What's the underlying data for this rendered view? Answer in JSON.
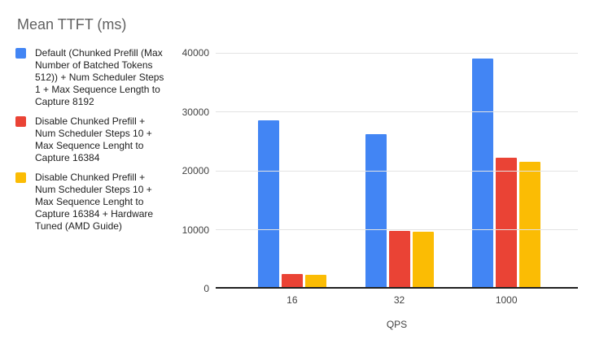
{
  "chart_data": {
    "type": "bar",
    "title": "Mean TTFT (ms)",
    "xlabel": "QPS",
    "ylabel": "",
    "categories": [
      "16",
      "32",
      "1000"
    ],
    "series": [
      {
        "name": "Default (Chunked Prefill (Max Number of Batched Tokens 512)) + Num Scheduler Steps 1 + Max Sequence Length to Capture 8192",
        "legend_lines": [
          "Default (Chunked Prefill (Max",
          "Number of Batched Tokens",
          "512)) + Num Scheduler Steps",
          "1 + Max Sequence Length to",
          "Capture 8192"
        ],
        "color": "#4285F4",
        "values": [
          28300,
          25900,
          38800
        ]
      },
      {
        "name": "Disable Chunked Prefill + Num Scheduler Steps 10 + Max Sequence Lenght to Capture 16384",
        "legend_lines": [
          "Disable Chunked Prefill +",
          "Num Scheduler Steps 10 +",
          "Max Sequence Lenght to",
          "Capture 16384"
        ],
        "color": "#EA4335",
        "values": [
          2200,
          9500,
          21900
        ]
      },
      {
        "name": "Disable Chunked Prefill + Num Scheduler Steps 10 + Max Sequence Lenght to Capture 16384 + Hardware Tuned (AMD Guide)",
        "legend_lines": [
          "Disable Chunked Prefill +",
          "Num Scheduler Steps 10 +",
          "Max Sequence Lenght to",
          "Capture 16384 + Hardware",
          "Tuned (AMD Guide)"
        ],
        "color": "#FBBC04",
        "values": [
          2100,
          9400,
          21300
        ]
      }
    ],
    "yticks": [
      0,
      10000,
      20000,
      30000,
      40000
    ],
    "ylim": [
      0,
      40000
    ],
    "grid": true,
    "legend_position": "left"
  }
}
